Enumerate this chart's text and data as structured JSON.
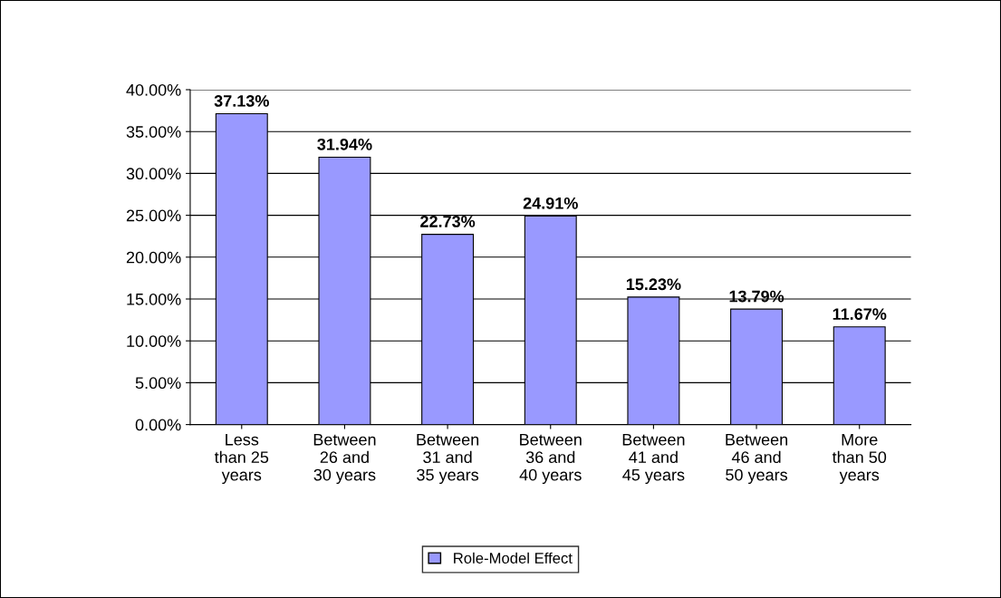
{
  "chart_data": {
    "type": "bar",
    "categories": [
      "Less\nthan 25\nyears",
      "Between\n26 and\n30 years",
      "Between\n31 and\n35 years",
      "Between\n36 and\n40 years",
      "Between\n41 and\n45 years",
      "Between\n46 and\n50 years",
      "More\nthan 50\nyears"
    ],
    "series": [
      {
        "name": "Role-Model Effect",
        "color": "#9999ff",
        "values": [
          37.13,
          31.94,
          22.73,
          24.91,
          15.23,
          13.79,
          11.67
        ],
        "value_labels": [
          "37.13%",
          "31.94%",
          "22.73%",
          "24.91%",
          "15.23%",
          "13.79%",
          "11.67%"
        ]
      }
    ],
    "ylim": [
      0,
      40
    ],
    "yticks": [
      {
        "value": 0,
        "label": "0.00%"
      },
      {
        "value": 5,
        "label": "5.00%"
      },
      {
        "value": 10,
        "label": "10.00%"
      },
      {
        "value": 15,
        "label": "15.00%"
      },
      {
        "value": 20,
        "label": "20.00%"
      },
      {
        "value": 25,
        "label": "25.00%"
      },
      {
        "value": 30,
        "label": "30.00%"
      },
      {
        "value": 35,
        "label": "35.00%"
      },
      {
        "value": 40,
        "label": "40.00%"
      }
    ],
    "grid": "y",
    "legend": "bottom"
  }
}
